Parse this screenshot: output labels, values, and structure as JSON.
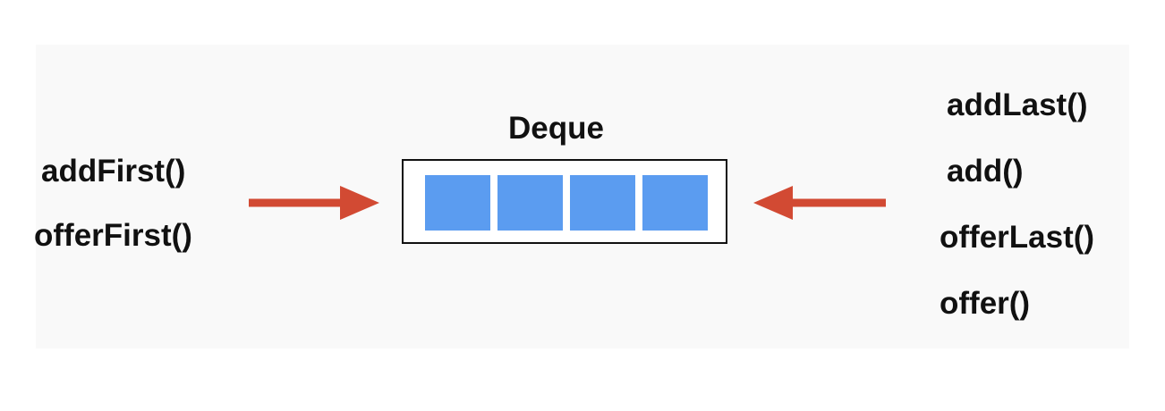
{
  "title": "Deque",
  "left_operations": [
    "addFirst()",
    "offerFirst()"
  ],
  "right_operations": [
    "addLast()",
    "add()",
    "offerLast()",
    "offer()"
  ],
  "slot_count": 4,
  "colors": {
    "slot_fill": "#5b9cf0",
    "arrow": "#d24a33",
    "border": "#111111",
    "text": "#111111"
  }
}
